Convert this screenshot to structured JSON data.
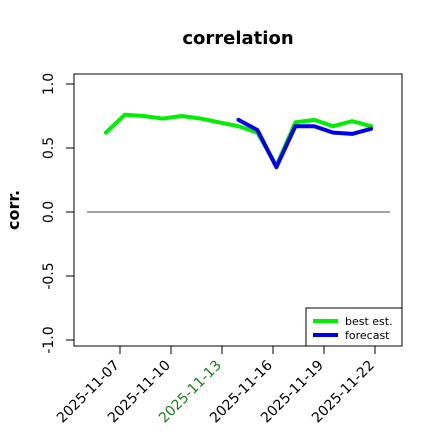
{
  "chart_data": {
    "type": "line",
    "title": "correlation",
    "ylabel": "corr.",
    "xlabel": "",
    "ylim": [
      -1.0,
      1.0
    ],
    "yticks": [
      -1.0,
      -0.5,
      0.0,
      0.5,
      1.0
    ],
    "ytick_labels": [
      "-1.0",
      "-0.5",
      "0.0",
      "0.5",
      "1.0"
    ],
    "xtick_labels": [
      "2025-11-07",
      "2025-11-10",
      "2025-11-13",
      "2025-11-16",
      "2025-11-19",
      "2025-11-22"
    ],
    "highlighted_xtick": "2025-11-13",
    "legend_placement": "bottom-right",
    "reference_line_y": 0.0,
    "x_dates": [
      "2025-11-06",
      "2025-11-07",
      "2025-11-08",
      "2025-11-09",
      "2025-11-10",
      "2025-11-11",
      "2025-11-12",
      "2025-11-13",
      "2025-11-14",
      "2025-11-15",
      "2025-11-16",
      "2025-11-17",
      "2025-11-18",
      "2025-11-19",
      "2025-11-20",
      "2025-11-21"
    ],
    "series": [
      {
        "name": "best est.",
        "color": "#00ee00",
        "values": [
          0.62,
          0.76,
          0.75,
          0.73,
          0.75,
          0.73,
          0.7,
          0.67,
          0.62,
          0.36,
          0.7,
          0.72,
          0.67,
          0.71,
          0.67,
          null
        ]
      },
      {
        "name": "forecast",
        "color": "#0000ee",
        "values": [
          null,
          null,
          null,
          null,
          null,
          null,
          null,
          0.72,
          0.64,
          0.35,
          0.67,
          0.67,
          0.62,
          0.61,
          0.65,
          null
        ]
      }
    ],
    "x_axis_span_dates": [
      "2025-11-05",
      "2025-11-21"
    ],
    "axis_color": "#000000",
    "highlight_color": "#1a7f1a"
  }
}
